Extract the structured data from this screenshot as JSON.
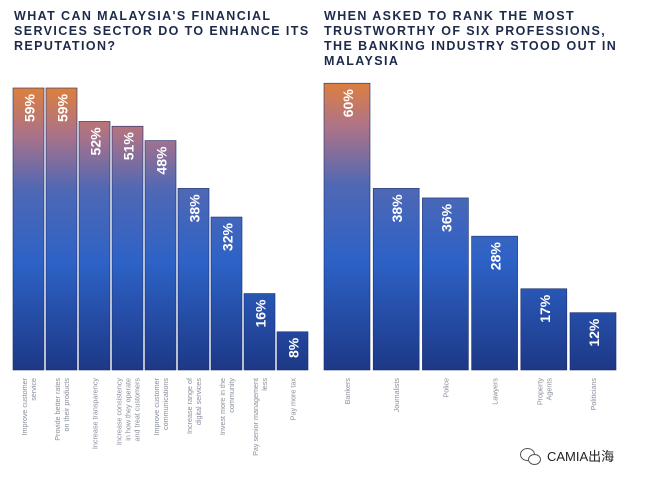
{
  "chart_data": [
    {
      "type": "bar",
      "title": "WHAT CAN MALAYSIA'S FINANCIAL SERVICES SECTOR DO TO ENHANCE ITS REPUTATION?",
      "categories": [
        "Improve customer service",
        "Provide better rates on their products",
        "Increase transparency",
        "Increase consistency in how they operate and treat customers",
        "Improve customer communications",
        "Increase range of digital services",
        "Invest more in the community",
        "Pay senior management less",
        "Pay more tax"
      ],
      "values": [
        59,
        59,
        52,
        51,
        48,
        38,
        32,
        16,
        8
      ],
      "value_labels": [
        "59%",
        "59%",
        "52%",
        "51%",
        "48%",
        "38%",
        "32%",
        "16%",
        "8%"
      ],
      "ylim": [
        0,
        60
      ],
      "xlabel": "",
      "ylabel": ""
    },
    {
      "type": "bar",
      "title": "WHEN ASKED TO RANK THE MOST TRUSTWORTHY OF SIX PROFESSIONS, THE BANKING INDUSTRY STOOD OUT IN MALAYSIA",
      "categories": [
        "Bankers",
        "Journalists",
        "Police",
        "Lawyers",
        "Property Agents",
        "Politicians"
      ],
      "values": [
        60,
        38,
        36,
        28,
        17,
        12
      ],
      "value_labels": [
        "60%",
        "38%",
        "36%",
        "28%",
        "17%",
        "12%"
      ],
      "ylim": [
        0,
        60
      ],
      "xlabel": "",
      "ylabel": ""
    }
  ],
  "colors": {
    "bar_top_warm": "#d9824a",
    "bar_mid": "#8a6f96",
    "bar_blue": "#2f5fb8",
    "bar_dark": "#1f3f8c",
    "label_text": "#ffffff",
    "category_text": "#8a8f9c",
    "title_text": "#1d2a4a"
  },
  "watermark": {
    "icon": "wechat-icon",
    "text": "CAMIA出海"
  }
}
